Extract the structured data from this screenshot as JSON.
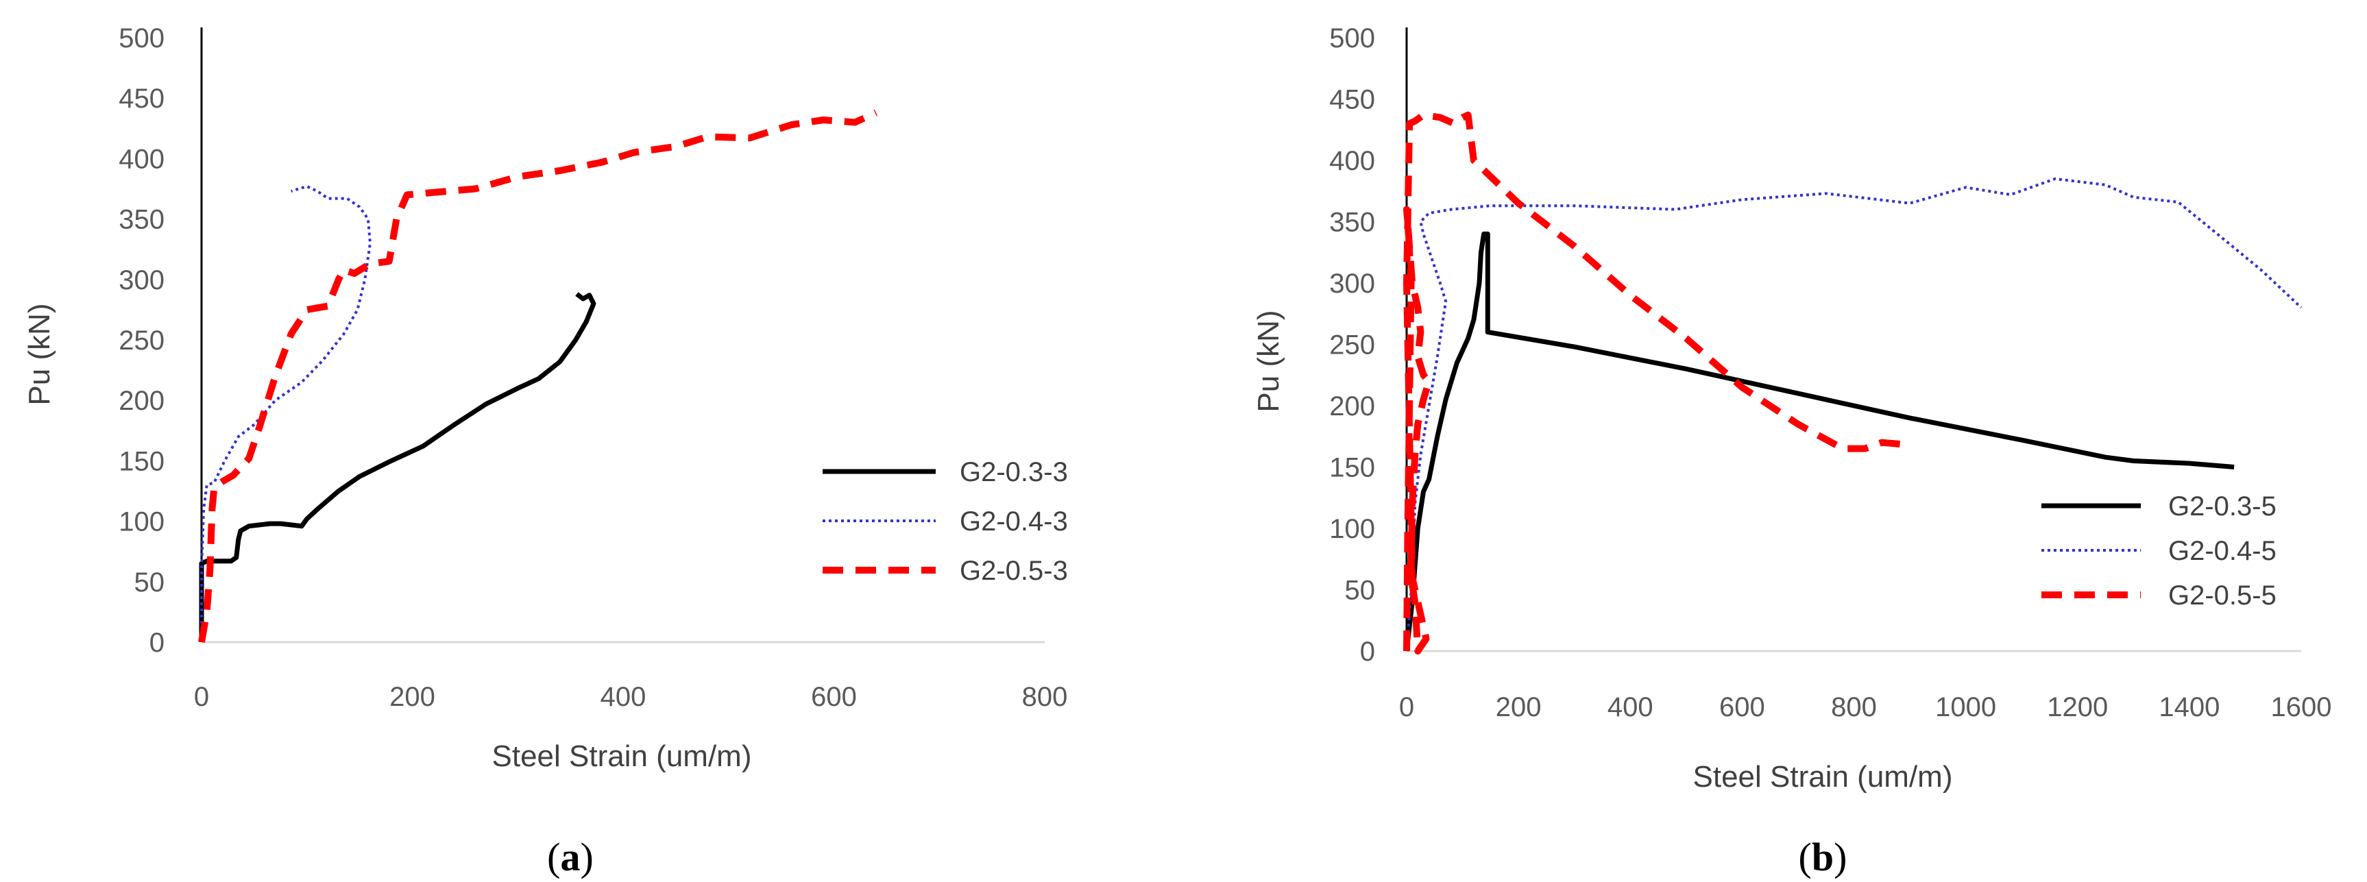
{
  "chart_data": [
    {
      "type": "line",
      "panel": "a",
      "caption_open": "(",
      "caption_letter": "a",
      "caption_close": ")",
      "xlabel": "Steel Strain (um/m)",
      "ylabel": "Pu (kN)",
      "xlim": [
        0,
        800
      ],
      "ylim": [
        0,
        500
      ],
      "xticks": [
        0,
        200,
        400,
        600,
        800
      ],
      "yticks": [
        0,
        50,
        100,
        150,
        200,
        250,
        300,
        350,
        400,
        450,
        500
      ],
      "legend_position": "bottom-right",
      "series": [
        {
          "name": "G2-0.3-3",
          "style": "solid",
          "color": "#000000",
          "points": [
            [
              0,
              0
            ],
            [
              0,
              65
            ],
            [
              5,
              67
            ],
            [
              28,
              67
            ],
            [
              33,
              70
            ],
            [
              35,
              85
            ],
            [
              37,
              92
            ],
            [
              45,
              96
            ],
            [
              55,
              97
            ],
            [
              65,
              98
            ],
            [
              75,
              98
            ],
            [
              85,
              97
            ],
            [
              95,
              96
            ],
            [
              100,
              102
            ],
            [
              110,
              110
            ],
            [
              130,
              125
            ],
            [
              150,
              137
            ],
            [
              180,
              150
            ],
            [
              210,
              162
            ],
            [
              240,
              180
            ],
            [
              270,
              197
            ],
            [
              300,
              210
            ],
            [
              320,
              218
            ],
            [
              340,
              232
            ],
            [
              355,
              250
            ],
            [
              365,
              265
            ],
            [
              372,
              280
            ],
            [
              368,
              287
            ],
            [
              362,
              284
            ],
            [
              356,
              288
            ]
          ]
        },
        {
          "name": "G2-0.4-3",
          "style": "dotted",
          "color": "#3333cc",
          "points": [
            [
              0,
              0
            ],
            [
              0,
              60
            ],
            [
              2,
              110
            ],
            [
              5,
              130
            ],
            [
              12,
              132
            ],
            [
              22,
              150
            ],
            [
              35,
              170
            ],
            [
              50,
              180
            ],
            [
              70,
              200
            ],
            [
              95,
              215
            ],
            [
              115,
              233
            ],
            [
              135,
              255
            ],
            [
              148,
              275
            ],
            [
              155,
              300
            ],
            [
              160,
              330
            ],
            [
              158,
              350
            ],
            [
              150,
              360
            ],
            [
              138,
              367
            ],
            [
              120,
              367
            ],
            [
              110,
              373
            ],
            [
              100,
              377
            ],
            [
              92,
              375
            ],
            [
              85,
              373
            ]
          ]
        },
        {
          "name": "G2-0.5-3",
          "style": "dashed",
          "color": "#ff0000",
          "points": [
            [
              0,
              0
            ],
            [
              5,
              25
            ],
            [
              8,
              60
            ],
            [
              10,
              110
            ],
            [
              12,
              128
            ],
            [
              20,
              133
            ],
            [
              30,
              138
            ],
            [
              45,
              152
            ],
            [
              55,
              178
            ],
            [
              70,
              220
            ],
            [
              85,
              255
            ],
            [
              100,
              275
            ],
            [
              120,
              278
            ],
            [
              130,
              300
            ],
            [
              135,
              308
            ],
            [
              145,
              305
            ],
            [
              160,
              313
            ],
            [
              178,
              315
            ],
            [
              185,
              350
            ],
            [
              195,
              370
            ],
            [
              220,
              372
            ],
            [
              260,
              375
            ],
            [
              300,
              385
            ],
            [
              340,
              390
            ],
            [
              380,
              397
            ],
            [
              410,
              405
            ],
            [
              450,
              410
            ],
            [
              480,
              418
            ],
            [
              520,
              417
            ],
            [
              560,
              428
            ],
            [
              590,
              432
            ],
            [
              620,
              430
            ],
            [
              640,
              438
            ]
          ]
        }
      ]
    },
    {
      "type": "line",
      "panel": "b",
      "caption_open": "(",
      "caption_letter": "b",
      "caption_close": ")",
      "xlabel": "Steel Strain (um/m)",
      "ylabel": "Pu (kN)",
      "xlim": [
        0,
        1600
      ],
      "ylim": [
        0,
        500
      ],
      "xticks": [
        0,
        200,
        400,
        600,
        800,
        1000,
        1200,
        1400,
        1600
      ],
      "yticks": [
        0,
        50,
        100,
        150,
        200,
        250,
        300,
        350,
        400,
        450,
        500
      ],
      "legend_position": "bottom-right",
      "series": [
        {
          "name": "G2-0.3-5",
          "style": "solid",
          "color": "#000000",
          "points": [
            [
              0,
              0
            ],
            [
              10,
              40
            ],
            [
              20,
              100
            ],
            [
              30,
              130
            ],
            [
              40,
              140
            ],
            [
              55,
              175
            ],
            [
              70,
              205
            ],
            [
              90,
              235
            ],
            [
              110,
              255
            ],
            [
              120,
              270
            ],
            [
              125,
              285
            ],
            [
              130,
              300
            ],
            [
              133,
              325
            ],
            [
              138,
              340
            ],
            [
              145,
              340
            ],
            [
              145,
              260
            ],
            [
              300,
              248
            ],
            [
              500,
              230
            ],
            [
              700,
              210
            ],
            [
              900,
              190
            ],
            [
              1100,
              172
            ],
            [
              1250,
              158
            ],
            [
              1300,
              155
            ],
            [
              1400,
              153
            ],
            [
              1480,
              150
            ]
          ]
        },
        {
          "name": "G2-0.4-5",
          "style": "dotted",
          "color": "#3333cc",
          "points": [
            [
              0,
              0
            ],
            [
              10,
              60
            ],
            [
              15,
              120
            ],
            [
              25,
              160
            ],
            [
              40,
              200
            ],
            [
              55,
              240
            ],
            [
              65,
              270
            ],
            [
              70,
              285
            ],
            [
              60,
              300
            ],
            [
              45,
              320
            ],
            [
              30,
              340
            ],
            [
              25,
              350
            ],
            [
              40,
              357
            ],
            [
              80,
              360
            ],
            [
              150,
              363
            ],
            [
              300,
              363
            ],
            [
              480,
              360
            ],
            [
              600,
              368
            ],
            [
              750,
              373
            ],
            [
              900,
              365
            ],
            [
              1000,
              378
            ],
            [
              1080,
              372
            ],
            [
              1160,
              385
            ],
            [
              1250,
              380
            ],
            [
              1300,
              370
            ],
            [
              1380,
              366
            ],
            [
              1450,
              340
            ],
            [
              1530,
              310
            ],
            [
              1600,
              280
            ]
          ]
        },
        {
          "name": "G2-0.5-5",
          "style": "dashed",
          "color": "#ff0000",
          "points": [
            [
              0,
              0
            ],
            [
              2,
              100
            ],
            [
              5,
              200
            ],
            [
              8,
              300
            ],
            [
              3,
              345
            ],
            [
              0,
              360
            ],
            [
              5,
              330
            ],
            [
              10,
              300
            ],
            [
              20,
              280
            ],
            [
              25,
              260
            ],
            [
              20,
              240
            ],
            [
              30,
              225
            ],
            [
              40,
              220
            ],
            [
              30,
              205
            ],
            [
              20,
              185
            ],
            [
              15,
              160
            ],
            [
              10,
              120
            ],
            [
              8,
              60
            ],
            [
              15,
              40
            ],
            [
              20,
              0
            ],
            [
              35,
              10
            ],
            [
              10,
              60
            ],
            [
              0,
              300
            ],
            [
              5,
              430
            ],
            [
              15,
              432
            ],
            [
              30,
              437
            ],
            [
              60,
              435
            ],
            [
              85,
              430
            ],
            [
              100,
              435
            ],
            [
              110,
              437
            ],
            [
              120,
              400
            ],
            [
              200,
              365
            ],
            [
              300,
              330
            ],
            [
              400,
              290
            ],
            [
              500,
              255
            ],
            [
              600,
              215
            ],
            [
              700,
              185
            ],
            [
              780,
              165
            ],
            [
              820,
              165
            ],
            [
              850,
              170
            ],
            [
              900,
              168
            ]
          ]
        }
      ]
    }
  ]
}
